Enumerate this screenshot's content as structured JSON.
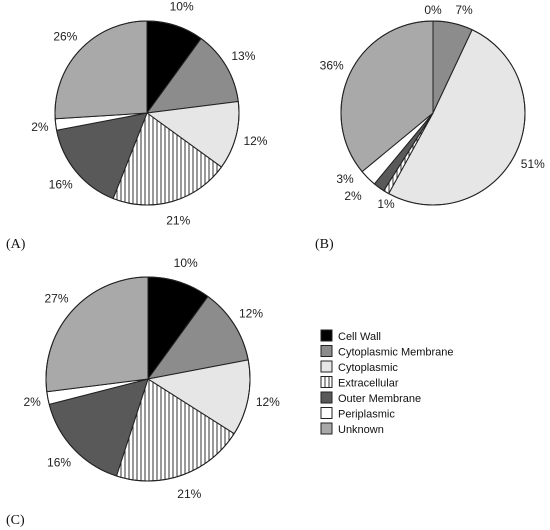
{
  "legend": {
    "items": [
      {
        "label": "Cell Wall",
        "fill": "#000000",
        "pattern": "solid"
      },
      {
        "label": "Cytoplasmic Membrane",
        "fill": "#8c8c8c",
        "pattern": "solid"
      },
      {
        "label": "Cytoplasmic",
        "fill": "#e6e6e6",
        "pattern": "solid"
      },
      {
        "label": "Extracellular",
        "fill": "#ffffff",
        "pattern": "vertical-stripes"
      },
      {
        "label": "Outer Membrane",
        "fill": "#595959",
        "pattern": "solid"
      },
      {
        "label": "Periplasmic",
        "fill": "#ffffff",
        "pattern": "solid"
      },
      {
        "label": "Unknown",
        "fill": "#a9a9a9",
        "pattern": "solid"
      }
    ]
  },
  "chart_data": [
    {
      "type": "pie",
      "panel_label": "(A)",
      "start_angle_deg": 0,
      "direction": "clockwise",
      "slices": [
        {
          "category": "Cell Wall",
          "value": 10,
          "label": "10%"
        },
        {
          "category": "Cytoplasmic Membrane",
          "value": 13,
          "label": "13%"
        },
        {
          "category": "Cytoplasmic",
          "value": 12,
          "label": "12%"
        },
        {
          "category": "Extracellular",
          "value": 21,
          "label": "21%"
        },
        {
          "category": "Outer Membrane",
          "value": 16,
          "label": "16%"
        },
        {
          "category": "Periplasmic",
          "value": 2,
          "label": "2%"
        },
        {
          "category": "Unknown",
          "value": 26,
          "label": "26%"
        }
      ]
    },
    {
      "type": "pie",
      "panel_label": "(B)",
      "start_angle_deg": 0,
      "direction": "clockwise",
      "slices": [
        {
          "category": "Cell Wall",
          "value": 0,
          "label": "0%"
        },
        {
          "category": "Cytoplasmic Membrane",
          "value": 7,
          "label": "7%"
        },
        {
          "category": "Cytoplasmic",
          "value": 51,
          "label": "51%"
        },
        {
          "category": "Extracellular",
          "value": 1,
          "label": "1%"
        },
        {
          "category": "Outer Membrane",
          "value": 2,
          "label": "2%"
        },
        {
          "category": "Periplasmic",
          "value": 3,
          "label": "3%"
        },
        {
          "category": "Unknown",
          "value": 36,
          "label": "36%"
        }
      ]
    },
    {
      "type": "pie",
      "panel_label": "(C)",
      "start_angle_deg": 0,
      "direction": "clockwise",
      "slices": [
        {
          "category": "Cell Wall",
          "value": 10,
          "label": "10%"
        },
        {
          "category": "Cytoplasmic Membrane",
          "value": 12,
          "label": "12%"
        },
        {
          "category": "Cytoplasmic",
          "value": 12,
          "label": "12%"
        },
        {
          "category": "Extracellular",
          "value": 21,
          "label": "21%"
        },
        {
          "category": "Outer Membrane",
          "value": 16,
          "label": "16%"
        },
        {
          "category": "Periplasmic",
          "value": 2,
          "label": "2%"
        },
        {
          "category": "Unknown",
          "value": 27,
          "label": "27%"
        }
      ]
    }
  ]
}
